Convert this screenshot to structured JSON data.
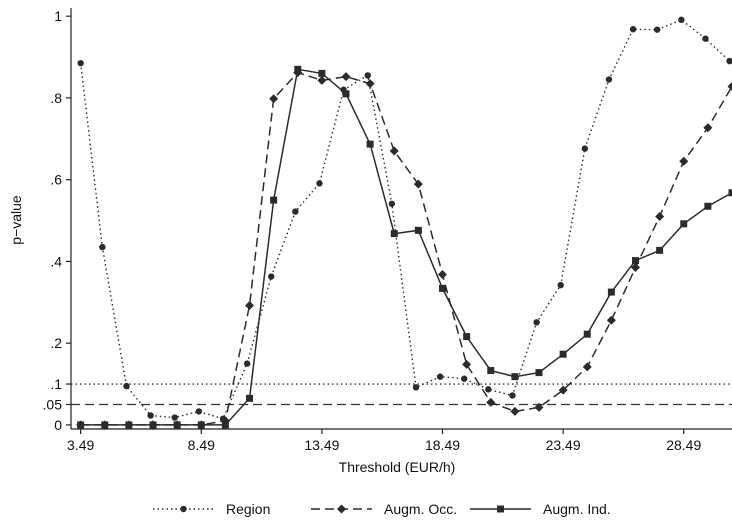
{
  "chart_data": {
    "type": "line",
    "xlabel": "Threshold (EUR/h)",
    "ylabel": "p−value",
    "x": [
      3.49,
      4.49,
      5.49,
      6.49,
      7.49,
      8.49,
      9.49,
      10.49,
      11.49,
      12.49,
      13.49,
      14.49,
      15.49,
      16.49,
      17.49,
      18.49,
      19.49,
      20.49,
      21.49,
      22.49,
      23.49,
      24.49,
      25.49,
      26.49,
      27.49,
      28.49,
      29.49,
      30.49
    ],
    "xlim": [
      3.09,
      30.49
    ],
    "ylim": [
      -0.01,
      1.02
    ],
    "xticks": [
      3.49,
      8.49,
      13.49,
      18.49,
      23.49,
      28.49
    ],
    "xtick_labels": [
      "3.49",
      "8.49",
      "13.49",
      "18.49",
      "23.49",
      "28.49"
    ],
    "yticks": [
      0,
      0.05,
      0.1,
      0.2,
      0.4,
      0.6,
      0.8,
      1
    ],
    "ytick_labels": [
      "0",
      ".05",
      ".1",
      ".2",
      ".4",
      ".6",
      ".8",
      "1"
    ],
    "reference_lines": [
      {
        "y": 0.1,
        "style": "dotted"
      },
      {
        "y": 0.05,
        "style": "dashed"
      }
    ],
    "series": [
      {
        "name": "Region",
        "style": "dotted",
        "marker": "circle",
        "color": "#2b2b2b",
        "x": [
          3.49,
          4.49,
          5.49,
          6.49,
          7.49,
          8.49,
          9.49,
          10.49,
          11.49,
          12.49,
          13.49,
          14.49,
          15.49,
          16.49,
          17.49,
          18.49,
          19.49,
          20.49,
          21.49,
          22.49,
          23.49,
          24.49,
          25.49,
          26.49,
          27.49,
          28.49,
          29.49,
          30.49
        ],
        "values": [
          0.885,
          0.435,
          0.095,
          0.023,
          0.018,
          0.033,
          0.015,
          0.15,
          0.363,
          0.522,
          0.591,
          0.82,
          0.855,
          0.541,
          0.092,
          0.118,
          0.113,
          0.087,
          0.072,
          0.251,
          0.342,
          0.676,
          0.845,
          0.968,
          0.967,
          0.991,
          0.945,
          0.89
        ],
        "plot_x": [
          3.49,
          4.39,
          5.39,
          6.39,
          7.39,
          8.39,
          9.39,
          10.39,
          11.39,
          12.39,
          13.39,
          14.39,
          15.39,
          16.39,
          17.39,
          18.39,
          19.39,
          20.39,
          21.39,
          22.39,
          23.39,
          24.39,
          25.39,
          26.39,
          27.39,
          28.39,
          29.39,
          30.39
        ]
      },
      {
        "name": "Augm. Occ.",
        "style": "dashed",
        "marker": "diamond",
        "color": "#2b2b2b",
        "x": [
          3.49,
          4.49,
          5.49,
          6.49,
          7.49,
          8.49,
          9.49,
          10.49,
          11.49,
          12.49,
          13.49,
          14.49,
          15.49,
          16.49,
          17.49,
          18.49,
          19.49,
          20.49,
          21.49,
          22.49,
          23.49,
          24.49,
          25.49,
          26.49,
          27.49,
          28.49,
          29.49,
          30.49
        ],
        "values": [
          0,
          0,
          0,
          0,
          0,
          0,
          0.01,
          0.292,
          0.798,
          0.862,
          0.843,
          0.852,
          0.835,
          0.67,
          0.589,
          0.368,
          0.148,
          0.055,
          0.033,
          0.043,
          0.085,
          0.142,
          0.256,
          0.385,
          0.51,
          0.645,
          0.727,
          0.828
        ]
      },
      {
        "name": "Augm. Ind.",
        "style": "solid",
        "marker": "square",
        "color": "#2b2b2b",
        "x": [
          3.49,
          4.49,
          5.49,
          6.49,
          7.49,
          8.49,
          9.49,
          10.49,
          11.49,
          12.49,
          13.49,
          14.49,
          15.49,
          16.49,
          17.49,
          18.49,
          19.49,
          20.49,
          21.49,
          22.49,
          23.49,
          24.49,
          25.49,
          26.49,
          27.49,
          28.49,
          29.49,
          30.49
        ],
        "values": [
          0,
          0,
          0,
          0,
          0,
          0,
          0,
          0.065,
          0.55,
          0.87,
          0.86,
          0.81,
          0.687,
          0.468,
          0.476,
          0.334,
          0.216,
          0.133,
          0.118,
          0.128,
          0.173,
          0.222,
          0.325,
          0.402,
          0.427,
          0.492,
          0.535,
          0.568
        ]
      }
    ],
    "legend": {
      "placement": "bottom",
      "entries": [
        "Region",
        "Augm. Occ.",
        "Augm. Ind."
      ]
    },
    "grid": false
  }
}
